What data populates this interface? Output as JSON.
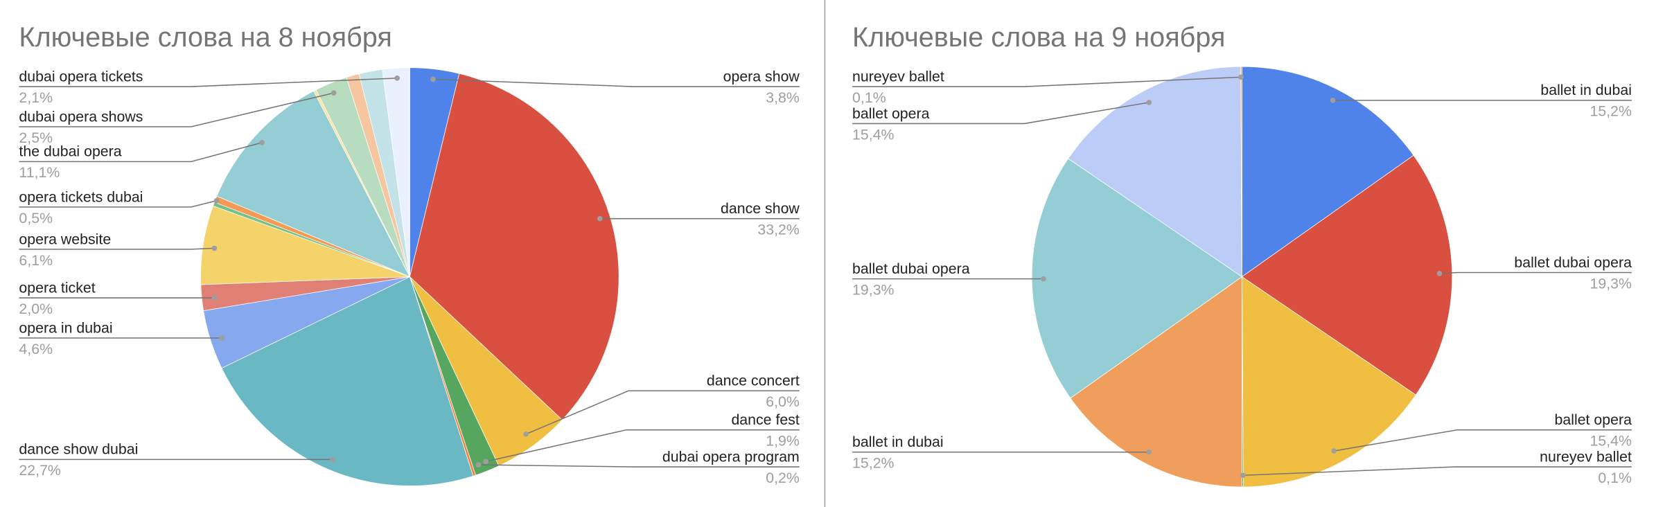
{
  "chart_data": [
    {
      "type": "pie",
      "title": "Ключевые слова на 8 ноября",
      "slices": [
        {
          "name": "opera show",
          "value": 3.8,
          "label": "3,8%",
          "color": "#5083ea"
        },
        {
          "name": "dance show",
          "value": 33.2,
          "label": "33,2%",
          "color": "#d95040"
        },
        {
          "name": "dance concert",
          "value": 6.0,
          "label": "6,0%",
          "color": "#f0be41"
        },
        {
          "name": "dance fest",
          "value": 1.9,
          "label": "1,9%",
          "color": "#57a65f"
        },
        {
          "name": "dubai opera program",
          "value": 0.2,
          "label": "0,2%",
          "color": "#f2813a"
        },
        {
          "name": "dance show dubai",
          "value": 22.7,
          "label": "22,7%",
          "color": "#6ab8c3"
        },
        {
          "name": "opera in dubai",
          "value": 4.6,
          "label": "4,6%",
          "color": "#86a8ef"
        },
        {
          "name": "opera ticket",
          "value": 2.0,
          "label": "2,0%",
          "color": "#e07f73"
        },
        {
          "name": "opera website",
          "value": 6.1,
          "label": "6,1%",
          "color": "#f3d36a"
        },
        {
          "name": "",
          "value": 0.3,
          "label": "",
          "color": "#78c08a"
        },
        {
          "name": "opera tickets dubai",
          "value": 0.5,
          "label": "0,5%",
          "color": "#f49a55"
        },
        {
          "name": "the dubai opera",
          "value": 11.1,
          "label": "11,1%",
          "color": "#94ced4"
        },
        {
          "name": "",
          "value": 0.2,
          "label": "",
          "color": "#fbe39c"
        },
        {
          "name": "dubai opera shows",
          "value": 2.5,
          "label": "2,5%",
          "color": "#b7dcbf"
        },
        {
          "name": "",
          "value": 1.0,
          "label": "",
          "color": "#f6c6a0"
        },
        {
          "name": "",
          "value": 1.8,
          "label": "",
          "color": "#c4e3e8"
        },
        {
          "name": "dubai opera tickets",
          "value": 2.1,
          "label": "2,1%",
          "color": "#eaf1fd"
        }
      ]
    },
    {
      "type": "pie",
      "title": "Ключевые слова на 9 ноября",
      "slices": [
        {
          "name": "ballet in dubai",
          "value": 15.2,
          "label": "15,2%",
          "color": "#5083ea"
        },
        {
          "name": "ballet dubai opera",
          "value": 19.3,
          "label": "19,3%",
          "color": "#d95040"
        },
        {
          "name": "ballet opera",
          "value": 15.4,
          "label": "15,4%",
          "color": "#f0be41"
        },
        {
          "name": "nureyev ballet",
          "value": 0.1,
          "label": "0,1%",
          "color": "#57a65f"
        },
        {
          "name": "ballet in dubai",
          "value": 15.2,
          "label": "15,2%",
          "color": "#f09e5b"
        },
        {
          "name": "ballet dubai opera",
          "value": 19.3,
          "label": "19,3%",
          "color": "#94ced4"
        },
        {
          "name": "ballet opera",
          "value": 15.4,
          "label": "15,4%",
          "color": "#bbcdf7"
        },
        {
          "name": "nureyev ballet",
          "value": 0.1,
          "label": "0,1%",
          "color": "#f09e5b"
        }
      ]
    }
  ]
}
